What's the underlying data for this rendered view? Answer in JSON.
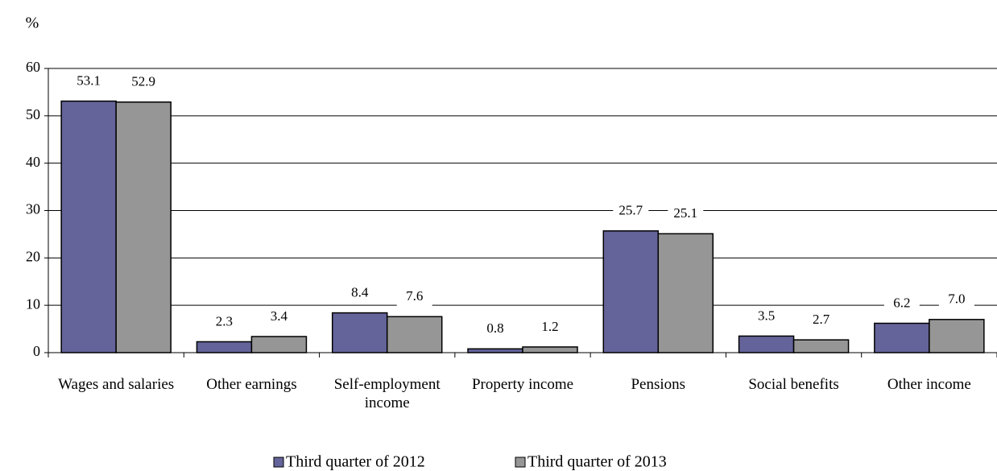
{
  "chart_data": {
    "type": "bar",
    "y_label": "%",
    "categories": [
      "Wages and salaries",
      "Other earnings",
      "Self-employment income",
      "Property income",
      "Pensions",
      "Social benefits",
      "Other income"
    ],
    "series": [
      {
        "name": "Third quarter of 2012",
        "color": "#64649a",
        "values": [
          53.1,
          2.3,
          8.4,
          0.8,
          25.7,
          3.5,
          6.2
        ]
      },
      {
        "name": "Third quarter of 2013",
        "color": "#969696",
        "values": [
          52.9,
          3.4,
          7.6,
          1.2,
          25.1,
          2.7,
          7.0
        ],
        "value_labels": [
          "52.9",
          "3.4",
          "7.6",
          "1.2",
          "25.1",
          "2.7",
          "7.0"
        ]
      }
    ],
    "ylim": [
      0,
      60
    ],
    "yticks": [
      0,
      10,
      20,
      30,
      40,
      50,
      60
    ],
    "grid": true,
    "legend": "bottom"
  }
}
